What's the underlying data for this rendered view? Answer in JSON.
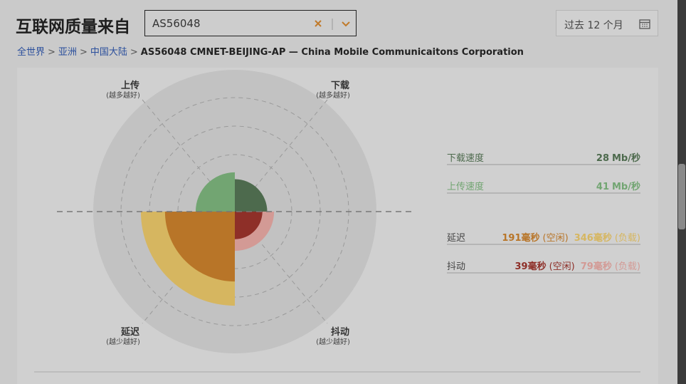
{
  "header": {
    "title": "互联网质量来自",
    "search": "AS56048",
    "date_range": "过去 12 个月"
  },
  "breadcrumb": [
    "全世界",
    "亚洲",
    "中国大陆",
    "AS56048 CMNET-BEIJING-AP — China Mobile Communicaitons Corporation"
  ],
  "axes": {
    "upload": {
      "label": "上传",
      "hint": "(越多越好)"
    },
    "download": {
      "label": "下载",
      "hint": "(越多越好)"
    },
    "latency": {
      "label": "延迟",
      "hint": "(越少越好)"
    },
    "jitter": {
      "label": "抖动",
      "hint": "(越少越好)"
    }
  },
  "metrics": {
    "download": {
      "label": "下载速度",
      "value": 28,
      "unit": "Mb/秒",
      "color": "#4d6a4d"
    },
    "upload": {
      "label": "上传速度",
      "value": 41,
      "unit": "Mb/秒",
      "color": "#72a572"
    },
    "latency": {
      "label": "延迟",
      "idle": 191,
      "loaded": 346,
      "unit": "毫秒",
      "idle_label": "(空闲)",
      "loaded_label": "(负载)",
      "idle_color": "#b87528",
      "loaded_color": "#d6b660"
    },
    "jitter": {
      "label": "抖动",
      "idle": 39,
      "loaded": 79,
      "unit": "毫秒",
      "idle_label": "(空闲)",
      "loaded_label": "(负载)",
      "idle_color": "#8e2f28",
      "loaded_color": "#d39a95"
    }
  }
}
